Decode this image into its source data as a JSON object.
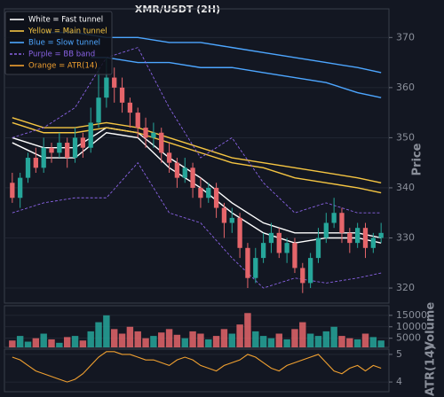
{
  "chart_data": [
    {
      "type": "candlestick",
      "title": "XMR/USDT (2H)",
      "ylabel": "Price",
      "legend": "upper left",
      "grid": true,
      "xlim": [
        -1,
        48
      ],
      "ylim": [
        317,
        374.3
      ],
      "yticks": [
        320,
        330,
        340,
        350,
        360,
        370
      ],
      "up_color": "#26a69a",
      "down_color": "#e5656a",
      "x": [
        0,
        1,
        2,
        3,
        4,
        5,
        6,
        7,
        8,
        9,
        10,
        11,
        12,
        13,
        14,
        15,
        16,
        17,
        18,
        19,
        20,
        21,
        22,
        23,
        24,
        25,
        26,
        27,
        28,
        29,
        30,
        31,
        32,
        33,
        34,
        35,
        36,
        37,
        38,
        39,
        40,
        41,
        42,
        43,
        44,
        45,
        46,
        47
      ],
      "open": [
        341,
        338,
        342,
        346,
        344,
        348,
        347,
        349,
        346,
        350,
        348,
        353,
        358,
        362,
        360,
        357,
        355,
        352,
        350,
        351,
        347,
        345,
        342,
        344,
        340,
        338,
        340,
        336,
        333,
        334,
        328,
        322,
        326,
        329,
        331,
        327,
        329,
        324,
        321,
        326,
        330,
        333,
        335,
        331,
        329,
        332,
        328,
        330
      ],
      "high": [
        343,
        343,
        347,
        348,
        350,
        349,
        351,
        350,
        352,
        351,
        356,
        364,
        366,
        364,
        362,
        358,
        356,
        354,
        353,
        352,
        349,
        346,
        346,
        345,
        342,
        341,
        341,
        337,
        336,
        335,
        329,
        328,
        331,
        333,
        332,
        330,
        330,
        325,
        327,
        332,
        335,
        338,
        336,
        332,
        333,
        333,
        331,
        333
      ],
      "low": [
        337,
        336,
        341,
        343,
        343,
        345,
        346,
        344,
        345,
        346,
        347,
        352,
        356,
        357,
        355,
        352,
        350,
        348,
        348,
        345,
        343,
        340,
        341,
        338,
        336,
        337,
        334,
        330,
        331,
        326,
        320,
        321,
        325,
        327,
        326,
        325,
        323,
        319,
        320,
        325,
        329,
        332,
        329,
        327,
        328,
        326,
        327,
        329
      ],
      "close": [
        338,
        342,
        346,
        344,
        348,
        347,
        349,
        346,
        350,
        348,
        353,
        358,
        362,
        360,
        357,
        355,
        352,
        350,
        351,
        347,
        345,
        342,
        344,
        340,
        338,
        340,
        336,
        333,
        334,
        328,
        322,
        326,
        329,
        331,
        327,
        329,
        324,
        321,
        326,
        330,
        333,
        335,
        331,
        329,
        332,
        328,
        330,
        331
      ],
      "lines": [
        {
          "name": "White = Fast tunnel",
          "color": "#ffffff",
          "dashed": false,
          "upper": {
            "x": [
              0,
              4,
              8,
              12,
              16,
              20,
              24,
              28,
              32,
              36,
              40,
              44,
              47
            ],
            "values": [
              350,
              348,
              348,
              352,
              351,
              346,
              342,
              337,
              333,
              331,
              331,
              331,
              330
            ]
          },
          "lower": {
            "x": [
              0,
              4,
              8,
              12,
              16,
              20,
              24,
              28,
              32,
              36,
              40,
              44,
              47
            ],
            "values": [
              349,
              346,
              346,
              351,
              350,
              344,
              340,
              335,
              331,
              329,
              330,
              330,
              329
            ]
          }
        },
        {
          "name": "Yellow = Main tunnel",
          "color": "#f5c542",
          "dashed": false,
          "upper": {
            "x": [
              0,
              4,
              8,
              12,
              16,
              20,
              24,
              28,
              32,
              36,
              40,
              44,
              47
            ],
            "values": [
              354,
              352,
              352,
              353,
              352,
              350,
              348,
              346,
              345,
              344,
              343,
              342,
              341
            ]
          },
          "lower": {
            "x": [
              0,
              4,
              8,
              12,
              16,
              20,
              24,
              28,
              32,
              36,
              40,
              44,
              47
            ],
            "values": [
              353,
              351,
              351,
              352,
              351,
              349,
              347,
              345,
              344,
              342,
              341,
              340,
              339
            ]
          }
        },
        {
          "name": "Blue = Slow tunnel",
          "color": "#4da6ff",
          "dashed": false,
          "upper": {
            "x": [
              4,
              8,
              12,
              16,
              20,
              24,
              28,
              32,
              36,
              40,
              44,
              47
            ],
            "values": [
              371,
              371,
              370,
              370,
              369,
              369,
              368,
              367,
              366,
              365,
              364,
              363
            ]
          },
          "lower": {
            "x": [
              10,
              12,
              16,
              20,
              24,
              28,
              32,
              36,
              40,
              44,
              47
            ],
            "values": [
              366,
              366,
              365,
              365,
              364,
              364,
              363,
              362,
              361,
              359,
              358
            ]
          }
        },
        {
          "name": "Purple = BB band",
          "color": "#8a63e6",
          "dashed": true,
          "upper": {
            "x": [
              0,
              4,
              8,
              12,
              16,
              20,
              24,
              28,
              32,
              36,
              40,
              44,
              47
            ],
            "values": [
              350,
              352,
              356,
              366,
              368,
              356,
              346,
              350,
              341,
              335,
              337,
              335,
              335
            ]
          },
          "lower": {
            "x": [
              0,
              4,
              8,
              12,
              16,
              20,
              24,
              28,
              32,
              36,
              40,
              44,
              47
            ],
            "values": [
              335,
              337,
              338,
              338,
              345,
              335,
              333,
              326,
              320,
              322,
              321,
              322,
              323
            ]
          }
        }
      ]
    },
    {
      "type": "bar",
      "ylabel": "Volume",
      "ylim": [
        1000,
        19200
      ],
      "yticks": [
        5000,
        10000,
        15000
      ],
      "values": [
        4000,
        6000,
        3500,
        5000,
        7000,
        4500,
        3000,
        5500,
        6000,
        4000,
        8000,
        12000,
        15000,
        9000,
        7000,
        10000,
        8000,
        5000,
        6000,
        7500,
        9000,
        6500,
        5000,
        8000,
        7000,
        4500,
        6000,
        9000,
        7000,
        11000,
        16000,
        8000,
        6000,
        5000,
        7000,
        4500,
        9000,
        12000,
        7000,
        6000,
        8000,
        10000,
        6000,
        5000,
        4500,
        7000,
        5500,
        4000
      ]
    },
    {
      "type": "line",
      "ylabel": "ATR(14)",
      "name": "Orange = ATR(14)",
      "color": "#f0a030",
      "ylim": [
        3.65,
        5.19
      ],
      "yticks": [
        4,
        5
      ],
      "values": [
        4.9,
        4.8,
        4.6,
        4.4,
        4.3,
        4.2,
        4.1,
        4.0,
        4.1,
        4.3,
        4.6,
        4.9,
        5.1,
        5.1,
        5.0,
        5.0,
        4.9,
        4.8,
        4.8,
        4.7,
        4.6,
        4.8,
        4.9,
        4.8,
        4.6,
        4.5,
        4.4,
        4.6,
        4.7,
        4.8,
        5.0,
        4.9,
        4.7,
        4.5,
        4.4,
        4.6,
        4.7,
        4.8,
        4.9,
        5.0,
        4.7,
        4.4,
        4.3,
        4.5,
        4.6,
        4.4,
        4.6,
        4.5
      ]
    }
  ]
}
